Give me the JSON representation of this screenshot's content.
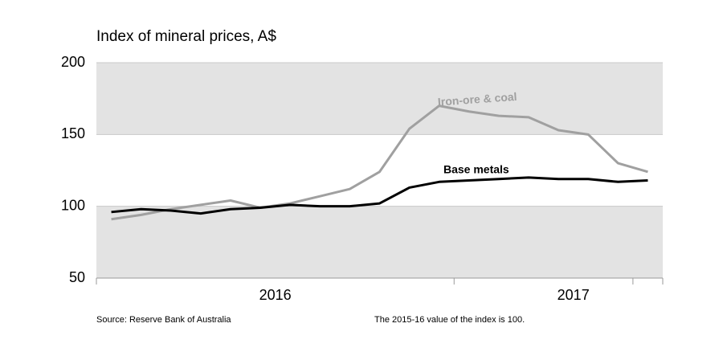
{
  "chart_data": {
    "type": "line",
    "title": "Index of mineral prices, A$",
    "source": "Source: Reserve Bank of Australia",
    "note": "The 2015-16 value of the index is 100.",
    "x": [
      0,
      1,
      2,
      3,
      4,
      5,
      6,
      7,
      8,
      9,
      10,
      11,
      12,
      13,
      14,
      15,
      16,
      17,
      18
    ],
    "xlim": [
      -0.5,
      18.5
    ],
    "xticks": [
      -0.5,
      11.5,
      17.5,
      18.5
    ],
    "x_labels": [
      {
        "value": 5.5,
        "label": "2016"
      },
      {
        "value": 15.5,
        "label": "2017"
      }
    ],
    "ylim": [
      50,
      200
    ],
    "yticks": [
      50,
      100,
      150,
      200
    ],
    "bands": true,
    "series": [
      {
        "name": "Iron-ore & coal",
        "color": "#a0a0a0",
        "values": [
          91,
          94,
          98,
          101,
          104,
          99,
          102,
          107,
          112,
          124,
          154,
          170,
          166,
          163,
          162,
          153,
          150,
          130,
          124
        ]
      },
      {
        "name": "Base metals",
        "color": "#000000",
        "values": [
          96,
          98,
          97,
          95,
          98,
          99,
          101,
          100,
          100,
          102,
          113,
          117,
          118,
          119,
          120,
          119,
          119,
          117,
          118
        ]
      }
    ]
  }
}
